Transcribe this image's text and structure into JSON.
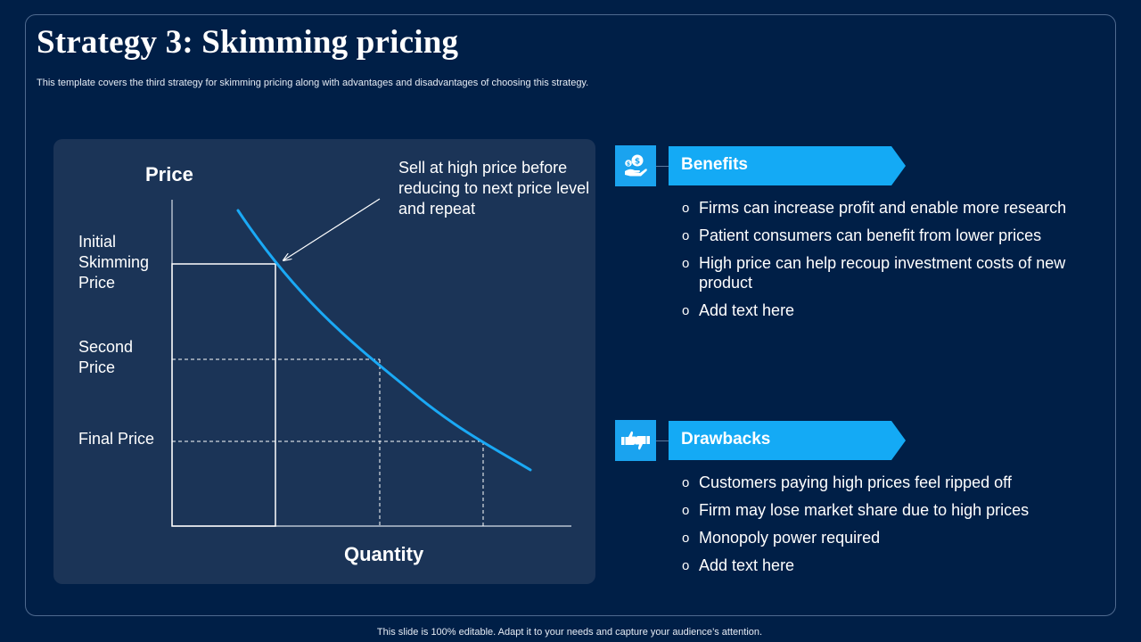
{
  "slide": {
    "title": "Strategy 3: Skimming pricing",
    "subtitle": "This template covers the third strategy for skimming pricing along with advantages and disadvantages of choosing this strategy.",
    "footer": "This slide is 100% editable. Adapt it to your needs and capture your audience’s attention."
  },
  "diagram": {
    "y_axis_title": "Price",
    "x_axis_title": "Quantity",
    "price_labels": {
      "initial": "Initial\nSkimming\nPrice",
      "second": "Second\nPrice",
      "final": "Final Price"
    },
    "callout": "Sell at high price before reducing to next price level and repeat",
    "curve_color": "#1aa9f5"
  },
  "benefits": {
    "title": "Benefits",
    "icon": "money-hand-icon",
    "items": [
      "Firms can increase profit and enable more research",
      "Patient consumers can benefit from lower prices",
      "High price can help recoup investment costs of new product",
      "Add text here"
    ]
  },
  "drawbacks": {
    "title": "Drawbacks",
    "icon": "thumbs-up-down-icon",
    "items": [
      "Customers paying high prices feel ripped off",
      "Firm may lose market share due to high prices",
      "Monopoly power required",
      "Add text here"
    ]
  },
  "colors": {
    "background": "#001f47",
    "panel": "#1b3457",
    "accent": "#14aaf5"
  }
}
